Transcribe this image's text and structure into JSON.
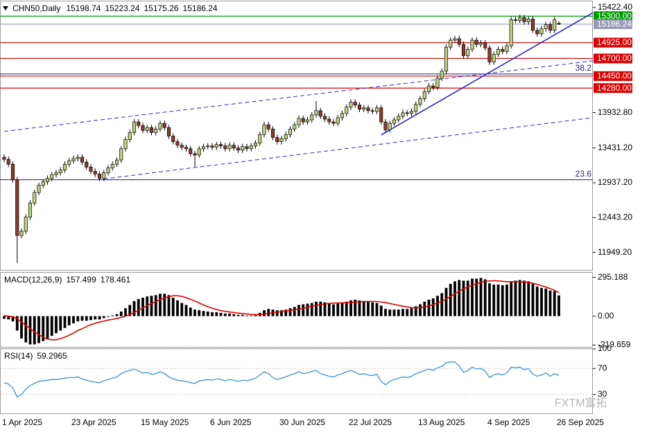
{
  "chart_data": [
    {
      "type": "candlestick",
      "title": "CHN50,Daily",
      "categories": [
        "1 Apr 2025",
        null,
        null,
        null,
        null,
        null,
        null,
        null,
        null,
        null,
        null,
        null,
        null,
        null,
        null,
        null,
        "23 Apr 2025",
        null,
        null,
        null,
        null,
        null,
        null,
        null,
        null,
        null,
        null,
        null,
        null,
        null,
        null,
        null,
        "15 May 2025",
        null,
        null,
        null,
        null,
        null,
        null,
        null,
        null,
        null,
        null,
        null,
        null,
        null,
        null,
        null,
        "6 Jun 2025",
        null,
        null,
        null,
        null,
        null,
        null,
        null,
        null,
        null,
        null,
        null,
        null,
        null,
        null,
        null,
        "30 Jun 2025",
        null,
        null,
        null,
        null,
        null,
        null,
        null,
        null,
        null,
        null,
        null,
        null,
        null,
        null,
        null,
        "22 Jul 2025",
        null,
        null,
        null,
        null,
        null,
        null,
        null,
        null,
        null,
        null,
        null,
        null,
        null,
        null,
        null,
        "13 Aug 2025",
        null,
        null,
        null,
        null,
        null,
        null,
        null,
        null,
        null,
        null,
        null,
        null,
        null,
        null,
        null,
        "4 Sep 2025",
        null,
        null,
        null,
        null,
        null,
        null,
        null,
        null,
        null,
        null,
        null,
        null,
        null,
        null,
        null,
        "26 Sep 2025"
      ],
      "open": [
        13300,
        13270,
        13200,
        12980,
        12190,
        12250,
        12450,
        12650,
        12800,
        12900,
        12950,
        13000,
        13050,
        13080,
        13120,
        13200,
        13250,
        13280,
        13300,
        13230,
        13160,
        13100,
        13060,
        13000,
        13080,
        13150,
        13200,
        13260,
        13420,
        13550,
        13650,
        13800,
        13750,
        13680,
        13720,
        13650,
        13700,
        13780,
        13720,
        13600,
        13520,
        13470,
        13440,
        13420,
        13350,
        13330,
        13420,
        13450,
        13460,
        13440,
        13480,
        13460,
        13420,
        13470,
        13430,
        13400,
        13450,
        13420,
        13460,
        13500,
        13620,
        13760,
        13700,
        13580,
        13520,
        13560,
        13620,
        13700,
        13760,
        13850,
        13800,
        13830,
        13900,
        13960,
        13880,
        13840,
        13800,
        13780,
        13860,
        13920,
        14010,
        14080,
        14040,
        13980,
        14000,
        13960,
        13950,
        14000,
        13800,
        13690,
        13780,
        13830,
        13880,
        13930,
        13920,
        13950,
        14050,
        14130,
        14230,
        14310,
        14290,
        14420,
        14520,
        14860,
        14960,
        14980,
        14900,
        14740,
        14830,
        14960,
        14900,
        14920,
        14850,
        14650,
        14760,
        14830,
        14800,
        14880,
        15250,
        15240,
        15280,
        15220,
        15260,
        15100,
        15050,
        15120,
        15180,
        15100,
        15198.74
      ],
      "high": [
        13340,
        13310,
        13240,
        13020,
        12290,
        12490,
        12690,
        12840,
        12940,
        12990,
        13040,
        13090,
        13120,
        13160,
        13240,
        13290,
        13320,
        13340,
        13340,
        13270,
        13200,
        13140,
        13100,
        13120,
        13190,
        13240,
        13300,
        13460,
        13590,
        13690,
        13840,
        13840,
        13790,
        13760,
        13760,
        13740,
        13820,
        13820,
        13760,
        13640,
        13560,
        13510,
        13480,
        13460,
        13390,
        13460,
        13490,
        13500,
        13500,
        13520,
        13520,
        13500,
        13510,
        13510,
        13470,
        13490,
        13490,
        13500,
        13540,
        13660,
        13800,
        13800,
        13740,
        13620,
        13600,
        13660,
        13740,
        13800,
        13890,
        13890,
        13870,
        13940,
        14100,
        14000,
        13920,
        13880,
        13840,
        13900,
        13960,
        14050,
        14120,
        14120,
        14080,
        14040,
        14040,
        14000,
        14040,
        14040,
        13840,
        13820,
        13870,
        13920,
        13970,
        13970,
        13990,
        14090,
        14170,
        14270,
        14350,
        14350,
        14460,
        14560,
        14900,
        15000,
        15020,
        15020,
        14940,
        14870,
        15000,
        15000,
        14960,
        14960,
        14890,
        14800,
        14870,
        14870,
        14920,
        15290,
        15290,
        15320,
        15320,
        15300,
        15300,
        15140,
        15160,
        15220,
        15220,
        15290,
        15223.24
      ],
      "low": [
        13230,
        13160,
        12940,
        11800,
        12150,
        12210,
        12410,
        12610,
        12760,
        12860,
        12910,
        12960,
        13010,
        13040,
        13080,
        13160,
        13210,
        13240,
        13190,
        13120,
        13060,
        13020,
        12960,
        12960,
        13040,
        13110,
        13160,
        13220,
        13380,
        13510,
        13610,
        13710,
        13640,
        13640,
        13610,
        13610,
        13660,
        13680,
        13560,
        13480,
        13430,
        13400,
        13380,
        13310,
        13160,
        13290,
        13380,
        13410,
        13400,
        13400,
        13420,
        13380,
        13380,
        13390,
        13360,
        13360,
        13380,
        13380,
        13420,
        13460,
        13580,
        13660,
        13540,
        13480,
        13480,
        13520,
        13580,
        13660,
        13720,
        13760,
        13760,
        13790,
        13860,
        13840,
        13800,
        13760,
        13740,
        13740,
        13820,
        13880,
        13970,
        14000,
        13940,
        13940,
        13920,
        13910,
        13910,
        13760,
        13650,
        13650,
        13740,
        13790,
        13840,
        13880,
        13880,
        13910,
        14010,
        14090,
        14190,
        14250,
        14250,
        14380,
        14480,
        14820,
        14920,
        14860,
        14700,
        14700,
        14790,
        14860,
        14860,
        14810,
        14610,
        14610,
        14720,
        14760,
        14760,
        14840,
        15200,
        15200,
        15180,
        15180,
        15060,
        15010,
        15010,
        15080,
        15060,
        15060,
        15175.26
      ],
      "close": [
        13270,
        13200,
        12980,
        12190,
        12250,
        12450,
        12650,
        12800,
        12900,
        12950,
        13000,
        13050,
        13080,
        13120,
        13200,
        13250,
        13280,
        13300,
        13230,
        13160,
        13100,
        13060,
        13000,
        13080,
        13150,
        13200,
        13260,
        13420,
        13550,
        13650,
        13800,
        13750,
        13680,
        13720,
        13650,
        13700,
        13780,
        13720,
        13600,
        13520,
        13470,
        13440,
        13420,
        13350,
        13330,
        13420,
        13450,
        13460,
        13440,
        13480,
        13460,
        13420,
        13470,
        13430,
        13400,
        13450,
        13420,
        13460,
        13500,
        13620,
        13760,
        13700,
        13580,
        13520,
        13560,
        13620,
        13700,
        13760,
        13850,
        13800,
        13830,
        13900,
        13960,
        13880,
        13840,
        13800,
        13780,
        13860,
        13920,
        14010,
        14080,
        14040,
        13980,
        14000,
        13960,
        13950,
        14000,
        13800,
        13690,
        13780,
        13830,
        13880,
        13930,
        13920,
        13950,
        14050,
        14130,
        14230,
        14310,
        14290,
        14420,
        14520,
        14860,
        14960,
        14980,
        14900,
        14740,
        14830,
        14960,
        14900,
        14920,
        14850,
        14650,
        14760,
        14830,
        14800,
        14880,
        15250,
        15240,
        15280,
        15220,
        15260,
        15100,
        15050,
        15120,
        15180,
        15100,
        15250,
        15186.24
      ],
      "up_color": "#bcd27a",
      "down_color": "#8b3b2e",
      "ylim": [
        11700,
        15490
      ],
      "yticks": [
        {
          "value": 15422.4,
          "label": "15422.40"
        },
        {
          "value": 13932.8,
          "label": "13932.80"
        },
        {
          "value": 13431.2,
          "label": "13431.20"
        },
        {
          "value": 12937.2,
          "label": "12937.20"
        },
        {
          "value": 12443.2,
          "label": "12443.20"
        },
        {
          "value": 11949.2,
          "label": "11949.20"
        }
      ],
      "levels": [
        {
          "value": 15300,
          "label": "15300.00",
          "color": "#009900"
        },
        {
          "value": 15186.24,
          "label": "15186.24",
          "color": "#9a9ab8"
        },
        {
          "value": 14925,
          "label": "14925.00",
          "color": "#dd0000"
        },
        {
          "value": 14700,
          "label": "14700.00",
          "color": "#dd0000"
        },
        {
          "value": 14450,
          "label": "14450.00",
          "color": "#dd0000"
        },
        {
          "value": 14280,
          "label": "14280.00",
          "color": "#dd0000"
        }
      ],
      "fib_levels": [
        {
          "value": 14480,
          "label": "38.2"
        },
        {
          "value": 12980,
          "label": "23.6"
        }
      ],
      "fib_color": "#1c1c6e",
      "trendlines": [
        {
          "from": [
            0,
            13666
          ],
          "to": [
            136,
            14667
          ],
          "style": "dashed"
        },
        {
          "from": [
            21.4,
            12979
          ],
          "to": [
            136,
            13862
          ],
          "style": "dashed"
        },
        {
          "from": [
            87,
            13617
          ],
          "to": [
            136,
            15354
          ],
          "style": "solid"
        }
      ],
      "trend_color": "#2828c8",
      "watermark": "FXTM富拓"
    },
    {
      "type": "macd",
      "title": "MACD(12,26,9)",
      "histogram": [
        -20,
        -25,
        -40,
        -110,
        -170,
        -200,
        -215,
        -215,
        -205,
        -190,
        -170,
        -150,
        -130,
        -110,
        -90,
        -70,
        -55,
        -40,
        -35,
        -35,
        -30,
        -25,
        -25,
        -15,
        -5,
        5,
        15,
        35,
        60,
        85,
        115,
        130,
        140,
        150,
        155,
        160,
        170,
        170,
        160,
        140,
        120,
        100,
        85,
        65,
        50,
        45,
        40,
        35,
        30,
        30,
        25,
        20,
        20,
        15,
        10,
        10,
        5,
        5,
        10,
        25,
        45,
        55,
        50,
        45,
        45,
        50,
        60,
        70,
        85,
        90,
        95,
        100,
        110,
        110,
        105,
        95,
        90,
        95,
        100,
        110,
        120,
        125,
        120,
        115,
        110,
        105,
        100,
        80,
        55,
        50,
        50,
        50,
        55,
        55,
        60,
        75,
        90,
        110,
        125,
        135,
        155,
        175,
        215,
        245,
        265,
        275,
        270,
        270,
        285,
        285,
        290,
        280,
        250,
        240,
        240,
        235,
        240,
        265,
        270,
        275,
        270,
        265,
        245,
        225,
        215,
        210,
        195,
        190,
        157.499
      ],
      "signal": [
        5,
        0,
        -5,
        -20,
        -45,
        -70,
        -95,
        -120,
        -140,
        -160,
        -175,
        -180,
        -180,
        -170,
        -160,
        -145,
        -130,
        -110,
        -95,
        -80,
        -65,
        -55,
        -45,
        -38,
        -30,
        -25,
        -18,
        -10,
        0,
        12,
        28,
        45,
        62,
        80,
        95,
        110,
        125,
        138,
        148,
        155,
        155,
        150,
        140,
        128,
        115,
        100,
        85,
        72,
        60,
        50,
        42,
        36,
        32,
        27,
        23,
        20,
        17,
        13,
        11,
        12,
        15,
        20,
        25,
        30,
        35,
        40,
        44,
        48,
        53,
        60,
        67,
        75,
        82,
        88,
        93,
        97,
        99,
        100,
        101,
        102,
        104,
        107,
        109,
        111,
        112,
        112,
        111,
        108,
        103,
        96,
        89,
        82,
        76,
        70,
        65,
        63,
        65,
        70,
        78,
        88,
        100,
        113,
        130,
        150,
        170,
        190,
        208,
        222,
        235,
        246,
        256,
        264,
        268,
        270,
        268,
        265,
        262,
        262,
        262,
        262,
        260,
        256,
        250,
        242,
        232,
        221,
        210,
        196,
        178.461
      ],
      "histogram_color": "#000000",
      "signal_color": "#e00000",
      "ylim": [
        -239,
        330
      ],
      "yticks": [
        295.188,
        {
          "value": 0,
          "label": "0.00"
        },
        -219.659
      ]
    },
    {
      "type": "line",
      "title": "RSI(14)",
      "values": [
        48,
        46,
        40,
        26,
        30,
        38,
        44,
        47,
        50,
        51,
        52,
        53,
        53,
        54,
        55,
        56,
        56,
        57,
        54,
        52,
        50,
        49,
        48,
        51,
        53,
        55,
        57,
        62,
        65,
        67,
        69,
        66,
        63,
        64,
        61,
        62,
        65,
        62,
        57,
        54,
        52,
        51,
        50,
        48,
        47,
        51,
        52,
        53,
        52,
        54,
        53,
        51,
        53,
        52,
        50,
        52,
        51,
        53,
        55,
        60,
        65,
        62,
        56,
        53,
        55,
        57,
        60,
        62,
        65,
        62,
        63,
        65,
        67,
        62,
        60,
        58,
        57,
        60,
        62,
        65,
        67,
        64,
        61,
        62,
        60,
        59,
        61,
        50,
        45,
        50,
        53,
        55,
        57,
        56,
        58,
        62,
        64,
        67,
        69,
        67,
        71,
        73,
        79,
        80,
        80,
        74,
        64,
        67,
        72,
        69,
        70,
        66,
        56,
        60,
        62,
        60,
        63,
        72,
        71,
        72,
        68,
        70,
        61,
        58,
        60,
        63,
        58,
        62,
        59.2965
      ],
      "color": "#3b8fd4",
      "ylim": [
        0,
        100
      ],
      "yticks": [
        100,
        70,
        30
      ],
      "grid": true
    }
  ]
}
